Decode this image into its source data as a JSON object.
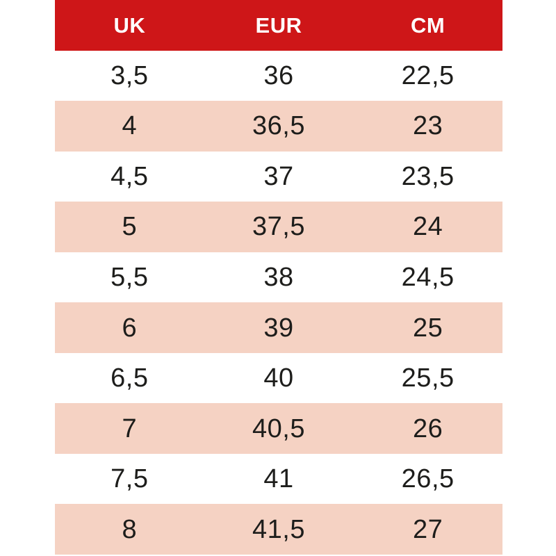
{
  "chart_data": {
    "type": "table",
    "columns": [
      "UK",
      "EUR",
      "CM"
    ],
    "rows": [
      [
        "3,5",
        "36",
        "22,5"
      ],
      [
        "4",
        "36,5",
        "23"
      ],
      [
        "4,5",
        "37",
        "23,5"
      ],
      [
        "5",
        "37,5",
        "24"
      ],
      [
        "5,5",
        "38",
        "24,5"
      ],
      [
        "6",
        "39",
        "25"
      ],
      [
        "6,5",
        "40",
        "25,5"
      ],
      [
        "7",
        "40,5",
        "26"
      ],
      [
        "7,5",
        "41",
        "26,5"
      ],
      [
        "8",
        "41,5",
        "27"
      ]
    ],
    "layout_hints": {
      "striped": "alternating white and peach rows",
      "header_position": "top"
    }
  },
  "colors": {
    "header_bg": "#ce1618",
    "header_text": "#ffffff",
    "row_bg": "#ffffff",
    "row_alt_bg": "#f5d2c3",
    "body_text": "#1d1d1b"
  }
}
